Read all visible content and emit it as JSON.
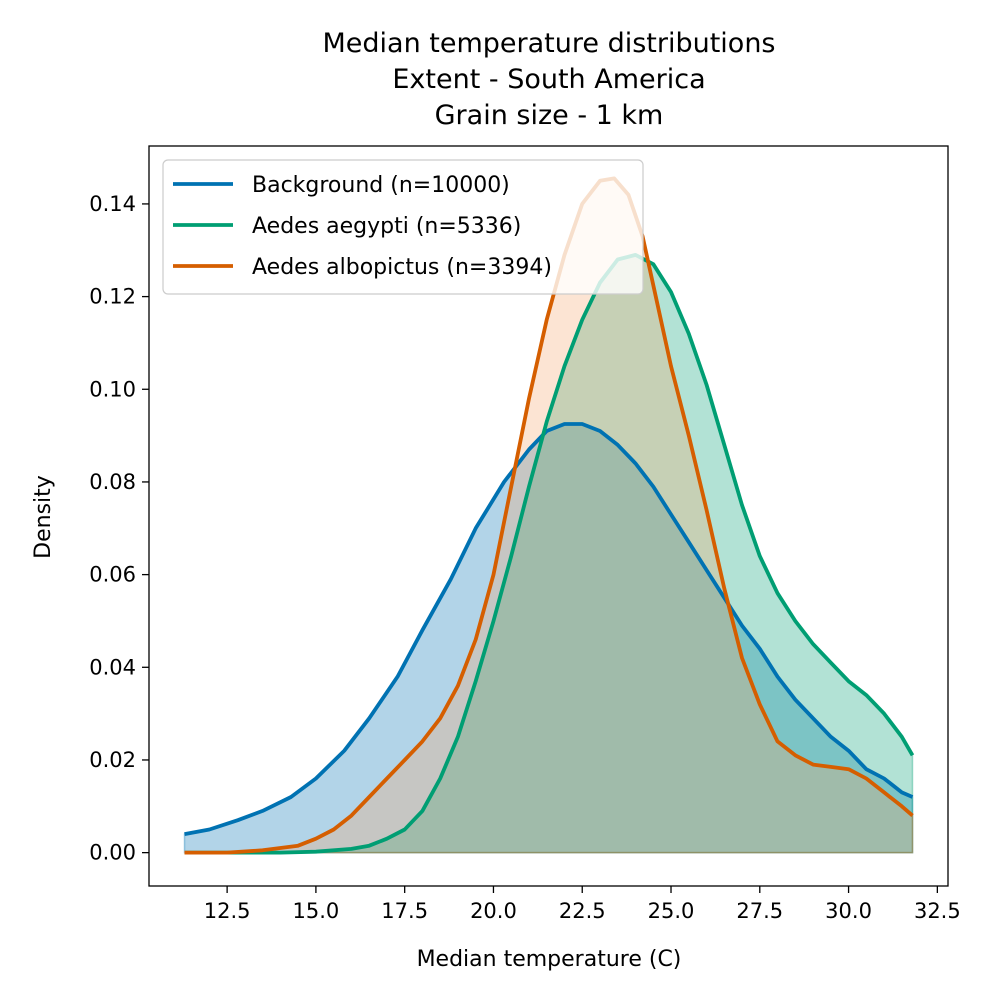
{
  "chart_data": {
    "type": "area",
    "title": [
      "Median temperature distributions",
      "Extent - South America",
      "Grain size - 1 km"
    ],
    "xlabel": "Median temperature (C)",
    "ylabel": "Density",
    "xlim": [
      10.3,
      32.8
    ],
    "ylim": [
      -0.0072,
      0.1525
    ],
    "xticks": [
      12.5,
      15.0,
      17.5,
      20.0,
      22.5,
      25.0,
      27.5,
      30.0,
      32.5
    ],
    "xtick_labels": [
      "12.5",
      "15.0",
      "17.5",
      "20.0",
      "22.5",
      "25.0",
      "27.5",
      "30.0",
      "32.5"
    ],
    "yticks": [
      0.0,
      0.02,
      0.04,
      0.06,
      0.08,
      0.1,
      0.12,
      0.14
    ],
    "ytick_labels": [
      "0.00",
      "0.02",
      "0.04",
      "0.06",
      "0.08",
      "0.10",
      "0.12",
      "0.14"
    ],
    "grid": false,
    "legend_position": "top-left",
    "series": [
      {
        "name": "Background (n=10000)",
        "color": "#0072b2",
        "fill_color": "#0072b2",
        "points": [
          [
            11.3,
            0.004
          ],
          [
            12.0,
            0.005
          ],
          [
            12.8,
            0.007
          ],
          [
            13.5,
            0.009
          ],
          [
            14.3,
            0.012
          ],
          [
            15.0,
            0.016
          ],
          [
            15.8,
            0.022
          ],
          [
            16.5,
            0.029
          ],
          [
            17.3,
            0.038
          ],
          [
            18.0,
            0.048
          ],
          [
            18.8,
            0.059
          ],
          [
            19.5,
            0.07
          ],
          [
            20.3,
            0.08
          ],
          [
            21.0,
            0.087
          ],
          [
            21.5,
            0.091
          ],
          [
            22.0,
            0.0925
          ],
          [
            22.5,
            0.0925
          ],
          [
            23.0,
            0.091
          ],
          [
            23.5,
            0.088
          ],
          [
            24.0,
            0.084
          ],
          [
            24.5,
            0.079
          ],
          [
            25.0,
            0.073
          ],
          [
            25.5,
            0.067
          ],
          [
            26.0,
            0.061
          ],
          [
            26.5,
            0.055
          ],
          [
            27.0,
            0.049
          ],
          [
            27.5,
            0.044
          ],
          [
            28.0,
            0.038
          ],
          [
            28.5,
            0.033
          ],
          [
            29.0,
            0.029
          ],
          [
            29.5,
            0.025
          ],
          [
            30.0,
            0.022
          ],
          [
            30.5,
            0.018
          ],
          [
            31.0,
            0.016
          ],
          [
            31.5,
            0.013
          ],
          [
            31.8,
            0.012
          ]
        ]
      },
      {
        "name": "Aedes aegypti (n=5336)",
        "color": "#009e73",
        "fill_color": "#009e73",
        "points": [
          [
            11.3,
            0.0
          ],
          [
            14.0,
            0.0
          ],
          [
            15.0,
            0.0002
          ],
          [
            16.0,
            0.0008
          ],
          [
            16.5,
            0.0015
          ],
          [
            17.0,
            0.003
          ],
          [
            17.5,
            0.005
          ],
          [
            18.0,
            0.009
          ],
          [
            18.5,
            0.016
          ],
          [
            19.0,
            0.025
          ],
          [
            19.5,
            0.037
          ],
          [
            20.0,
            0.05
          ],
          [
            20.5,
            0.064
          ],
          [
            21.0,
            0.079
          ],
          [
            21.5,
            0.093
          ],
          [
            22.0,
            0.105
          ],
          [
            22.5,
            0.115
          ],
          [
            23.0,
            0.123
          ],
          [
            23.5,
            0.128
          ],
          [
            24.0,
            0.129
          ],
          [
            24.5,
            0.127
          ],
          [
            25.0,
            0.121
          ],
          [
            25.5,
            0.112
          ],
          [
            26.0,
            0.101
          ],
          [
            26.5,
            0.088
          ],
          [
            27.0,
            0.075
          ],
          [
            27.5,
            0.064
          ],
          [
            28.0,
            0.056
          ],
          [
            28.5,
            0.05
          ],
          [
            29.0,
            0.045
          ],
          [
            29.5,
            0.041
          ],
          [
            30.0,
            0.037
          ],
          [
            30.5,
            0.034
          ],
          [
            31.0,
            0.03
          ],
          [
            31.5,
            0.025
          ],
          [
            31.8,
            0.021
          ]
        ]
      },
      {
        "name": "Aedes albopictus (n=3394)",
        "color": "#d55e00",
        "fill_color": "#f4a76d",
        "points": [
          [
            11.3,
            0.0
          ],
          [
            12.5,
            0.0
          ],
          [
            13.5,
            0.0005
          ],
          [
            14.5,
            0.0015
          ],
          [
            15.0,
            0.003
          ],
          [
            15.5,
            0.005
          ],
          [
            16.0,
            0.008
          ],
          [
            16.5,
            0.012
          ],
          [
            17.0,
            0.016
          ],
          [
            17.5,
            0.02
          ],
          [
            18.0,
            0.024
          ],
          [
            18.5,
            0.029
          ],
          [
            19.0,
            0.036
          ],
          [
            19.5,
            0.046
          ],
          [
            20.0,
            0.06
          ],
          [
            20.5,
            0.079
          ],
          [
            21.0,
            0.098
          ],
          [
            21.5,
            0.115
          ],
          [
            22.0,
            0.129
          ],
          [
            22.5,
            0.14
          ],
          [
            23.0,
            0.145
          ],
          [
            23.4,
            0.1455
          ],
          [
            23.8,
            0.142
          ],
          [
            24.2,
            0.133
          ],
          [
            24.6,
            0.119
          ],
          [
            25.0,
            0.105
          ],
          [
            25.5,
            0.09
          ],
          [
            26.0,
            0.074
          ],
          [
            26.5,
            0.057
          ],
          [
            27.0,
            0.042
          ],
          [
            27.5,
            0.032
          ],
          [
            28.0,
            0.024
          ],
          [
            28.5,
            0.021
          ],
          [
            29.0,
            0.019
          ],
          [
            29.5,
            0.0185
          ],
          [
            30.0,
            0.018
          ],
          [
            30.5,
            0.016
          ],
          [
            31.0,
            0.013
          ],
          [
            31.5,
            0.01
          ],
          [
            31.8,
            0.008
          ]
        ]
      }
    ]
  }
}
